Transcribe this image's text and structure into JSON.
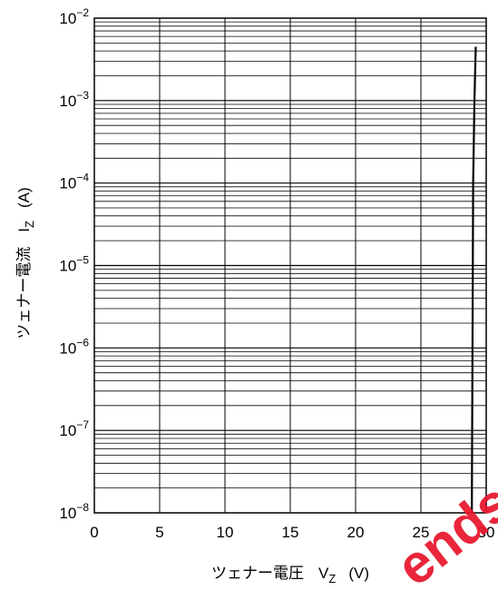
{
  "chart_data": {
    "type": "line",
    "title": "",
    "xlabel": "ツェナー電圧",
    "xlabel_symbol": "V",
    "xlabel_sub": "Z",
    "xlabel_unit": "(V)",
    "ylabel": "ツェナー電流",
    "ylabel_symbol": "I",
    "ylabel_sub": "Z",
    "ylabel_unit": "(A)",
    "xlim": [
      0,
      30
    ],
    "ylim": [
      1e-08,
      0.01
    ],
    "yscale": "log",
    "grid": true,
    "x_ticks": [
      "0",
      "5",
      "10",
      "15",
      "20",
      "25",
      "30"
    ],
    "y_ticks": [
      {
        "base": "10",
        "exp": "−8"
      },
      {
        "base": "10",
        "exp": "−7"
      },
      {
        "base": "10",
        "exp": "−6"
      },
      {
        "base": "10",
        "exp": "−5"
      },
      {
        "base": "10",
        "exp": "−4"
      },
      {
        "base": "10",
        "exp": "−3"
      },
      {
        "base": "10",
        "exp": "−2"
      }
    ],
    "series": [
      {
        "color": "#000000",
        "points": [
          [
            28.9,
            1e-08
          ],
          [
            29.0,
            0.0001
          ],
          [
            29.1,
            0.001
          ],
          [
            29.2,
            0.0045
          ]
        ]
      }
    ]
  },
  "watermark_text": "ends"
}
